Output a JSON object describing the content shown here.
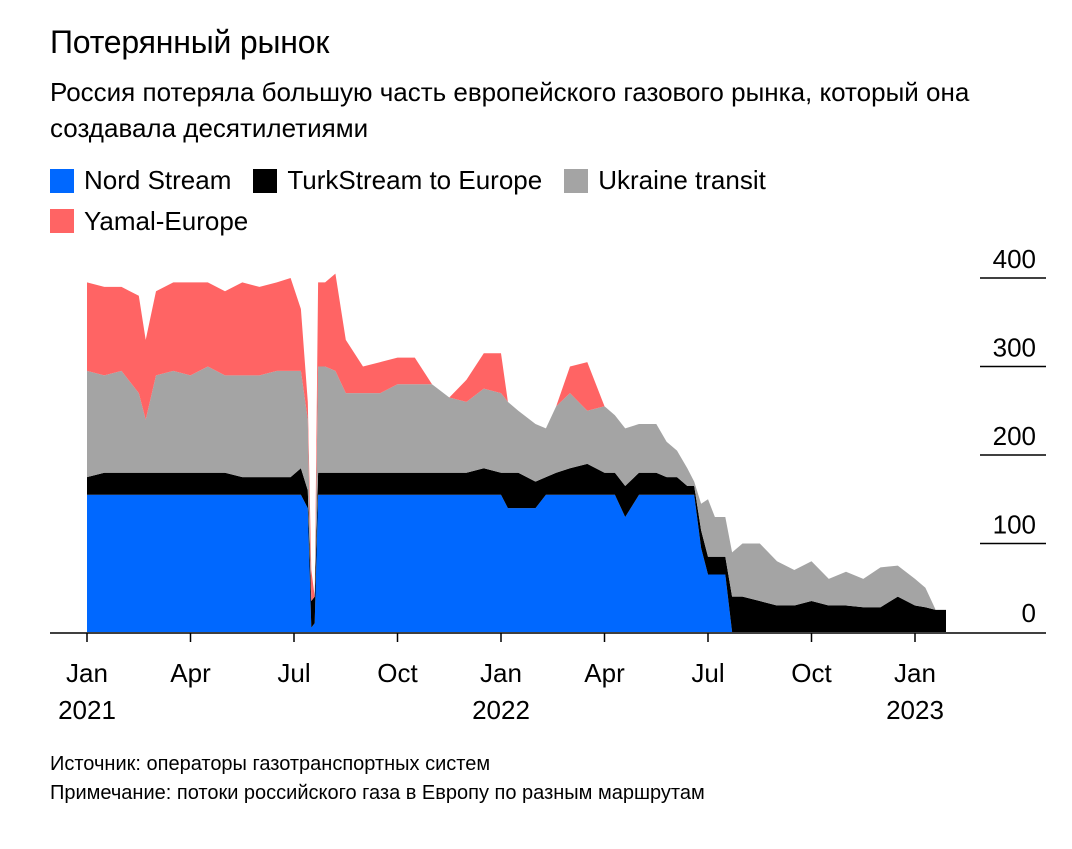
{
  "title": "Потерянный рынок",
  "subtitle": "Россия потеряла большую часть европейского газового рынка, который она создавала десятилетиями",
  "footer": {
    "source": "Источник: операторы газотранспортных систем",
    "note": "Примечание: потоки российского газа в Европу по разным маршрутам"
  },
  "chart_data": {
    "type": "area",
    "stacked": true,
    "x_unit": "months since Jan 2021",
    "ylim": [
      0,
      400
    ],
    "y_ticks": [
      {
        "value": 0,
        "label": "0"
      },
      {
        "value": 100,
        "label": "100"
      },
      {
        "value": 200,
        "label": "200"
      },
      {
        "value": 300,
        "label": "300"
      },
      {
        "value": 400,
        "label": "400"
      }
    ],
    "x_ticks": [
      {
        "month": 0,
        "label": "Jan",
        "year": "2021"
      },
      {
        "month": 3,
        "label": "Apr",
        "year": ""
      },
      {
        "month": 6,
        "label": "Jul",
        "year": ""
      },
      {
        "month": 9,
        "label": "Oct",
        "year": ""
      },
      {
        "month": 12,
        "label": "Jan",
        "year": "2022"
      },
      {
        "month": 15,
        "label": "Apr",
        "year": ""
      },
      {
        "month": 18,
        "label": "Jul",
        "year": ""
      },
      {
        "month": 21,
        "label": "Oct",
        "year": ""
      },
      {
        "month": 24,
        "label": "Jan",
        "year": "2023"
      }
    ],
    "legend_position": "top-left",
    "x": [
      0,
      0.5,
      1,
      1.5,
      1.7,
      2,
      2.5,
      3,
      3.5,
      4,
      4.5,
      5,
      5.5,
      5.9,
      6.2,
      6.4,
      6.5,
      6.6,
      6.7,
      6.9,
      7.2,
      7.5,
      8,
      8.5,
      9,
      9.5,
      10,
      10.5,
      11,
      11.5,
      12,
      12.2,
      12.5,
      13,
      13.3,
      13.6,
      14,
      14.5,
      15,
      15.3,
      15.6,
      16,
      16.5,
      16.8,
      17.1,
      17.4,
      17.6,
      17.8,
      18,
      18.2,
      18.5,
      18.7,
      19,
      19.5,
      20,
      20.5,
      21,
      21.5,
      22,
      22.5,
      23,
      23.5,
      24,
      24.3,
      24.6,
      24.9
    ],
    "series": [
      {
        "name": "Nord Stream",
        "color": "#0068ff",
        "values": [
          155,
          155,
          155,
          155,
          155,
          155,
          155,
          155,
          155,
          155,
          155,
          155,
          155,
          155,
          155,
          140,
          5,
          10,
          155,
          155,
          155,
          155,
          155,
          155,
          155,
          155,
          155,
          155,
          155,
          155,
          155,
          140,
          140,
          140,
          155,
          155,
          155,
          155,
          155,
          155,
          130,
          155,
          155,
          155,
          155,
          155,
          155,
          95,
          65,
          65,
          65,
          0,
          0,
          0,
          0,
          0,
          0,
          0,
          0,
          0,
          0,
          0,
          0,
          0,
          0,
          0
        ]
      },
      {
        "name": "TurkStream to Europe",
        "color": "#000000",
        "values": [
          20,
          25,
          25,
          25,
          25,
          25,
          25,
          25,
          25,
          25,
          20,
          20,
          20,
          20,
          30,
          20,
          30,
          30,
          25,
          25,
          25,
          25,
          25,
          25,
          25,
          25,
          25,
          25,
          25,
          30,
          25,
          40,
          40,
          30,
          20,
          25,
          30,
          35,
          25,
          25,
          35,
          25,
          25,
          20,
          20,
          10,
          10,
          20,
          20,
          20,
          20,
          40,
          40,
          35,
          30,
          30,
          35,
          30,
          30,
          28,
          28,
          40,
          30,
          28,
          25,
          25
        ]
      },
      {
        "name": "Ukraine transit",
        "color": "#a4a4a4",
        "values": [
          120,
          110,
          115,
          90,
          60,
          110,
          115,
          110,
          120,
          110,
          115,
          115,
          120,
          120,
          110,
          80,
          0,
          0,
          120,
          120,
          115,
          90,
          90,
          90,
          100,
          100,
          100,
          85,
          80,
          90,
          90,
          80,
          70,
          65,
          55,
          75,
          85,
          60,
          75,
          65,
          65,
          55,
          55,
          40,
          30,
          20,
          5,
          30,
          65,
          45,
          45,
          50,
          60,
          65,
          50,
          40,
          45,
          30,
          38,
          32,
          45,
          35,
          30,
          22,
          0,
          0
        ]
      },
      {
        "name": "Yamal-Europe",
        "color": "#ff6464",
        "values": [
          100,
          100,
          95,
          110,
          90,
          95,
          100,
          105,
          95,
          95,
          105,
          100,
          100,
          105,
          70,
          20,
          35,
          0,
          95,
          95,
          110,
          60,
          30,
          35,
          30,
          30,
          0,
          0,
          25,
          40,
          45,
          0,
          0,
          0,
          0,
          0,
          30,
          55,
          0,
          0,
          0,
          0,
          0,
          0,
          0,
          0,
          0,
          0,
          0,
          0,
          0,
          0,
          0,
          0,
          0,
          0,
          0,
          0,
          0,
          0,
          0,
          0,
          0,
          0,
          0,
          0
        ]
      }
    ]
  }
}
